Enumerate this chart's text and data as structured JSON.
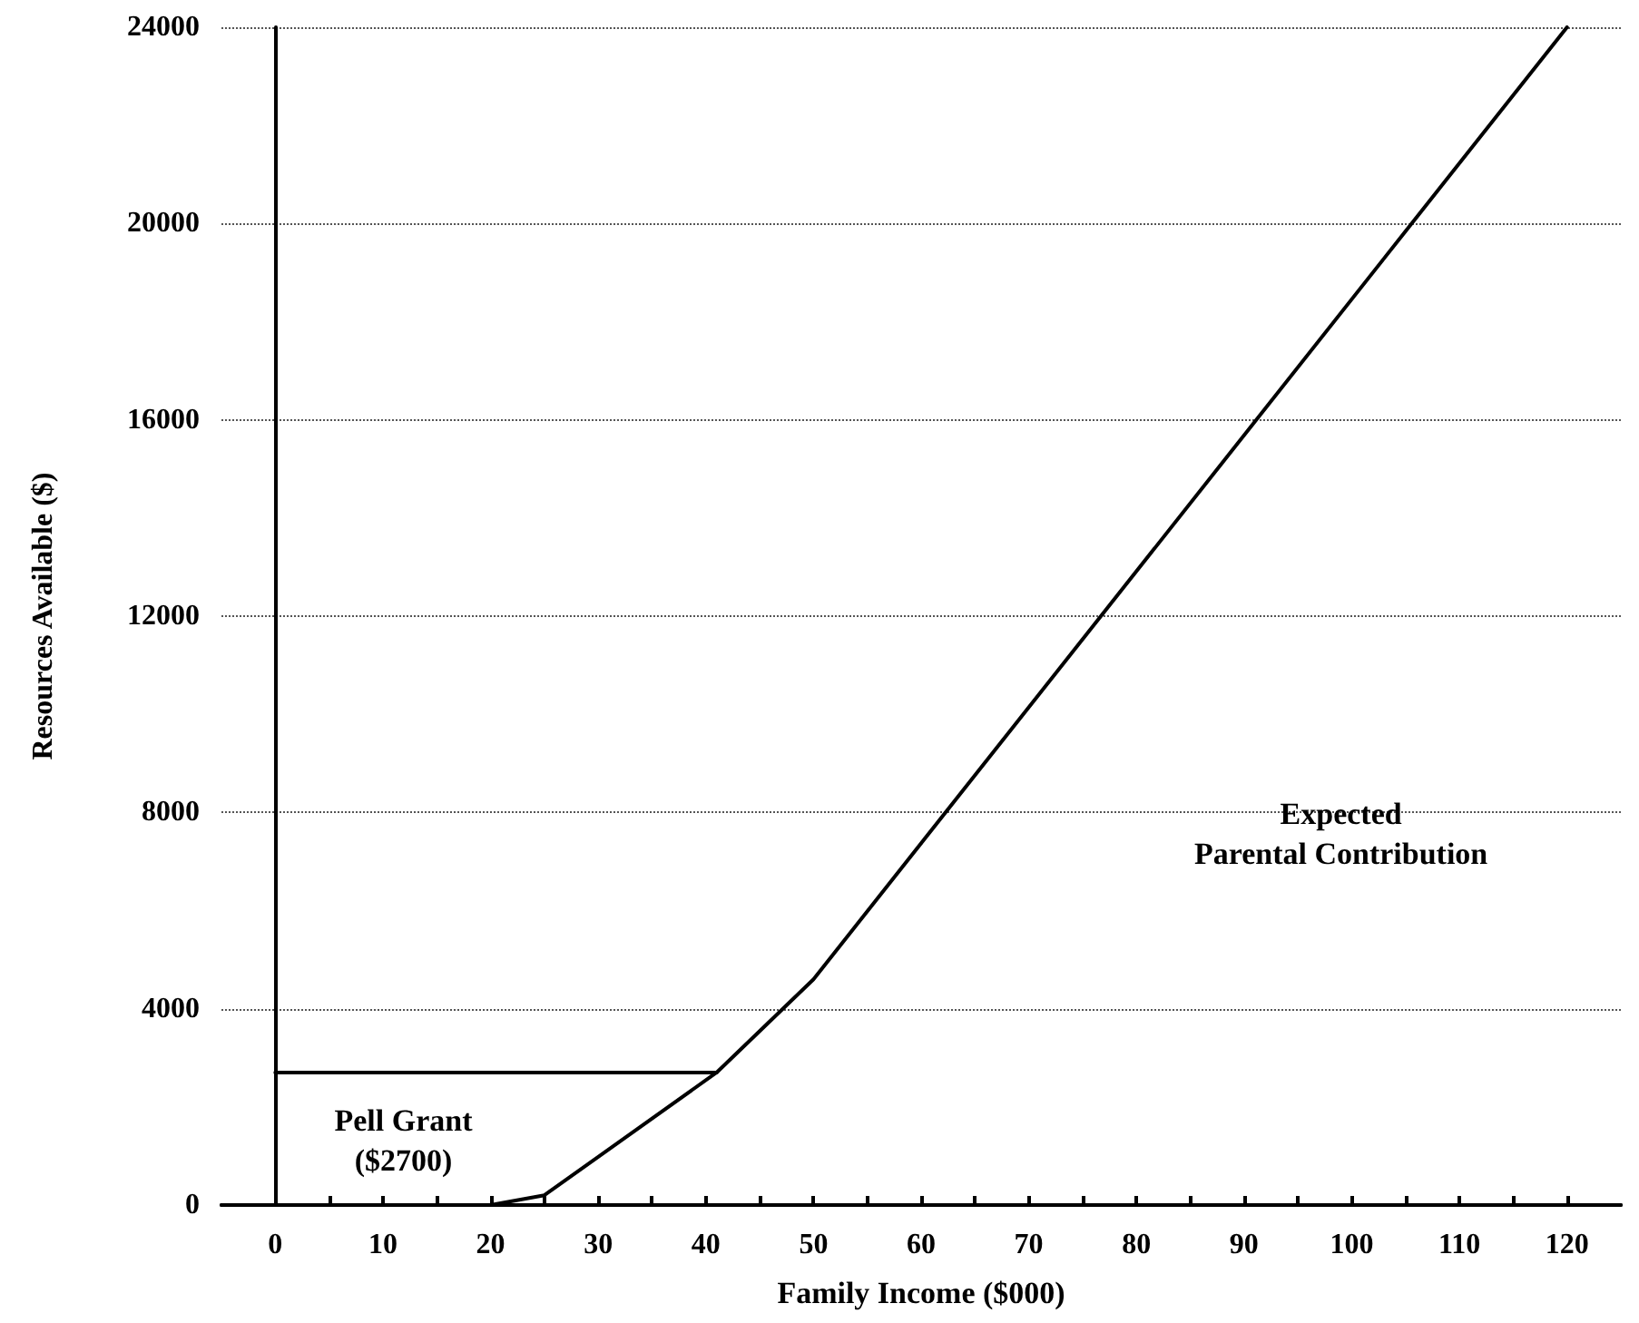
{
  "chart_data": {
    "type": "line",
    "xlabel": "Family Income ($000)",
    "ylabel": "Resources Available ($)",
    "series": [
      {
        "color": "#000000",
        "x": [
          0,
          41
        ],
        "values": [
          2700,
          2700
        ]
      },
      {
        "color": "#000000",
        "x": [
          0,
          20,
          25,
          41,
          50,
          120
        ],
        "values": [
          0,
          0,
          200,
          2700,
          4600,
          24000
        ]
      }
    ],
    "xlim": [
      -5,
      125
    ],
    "xticks": [
      0,
      {
        "value": 5,
        "label": null
      },
      10,
      {
        "value": 15,
        "label": null
      },
      20,
      {
        "value": 25,
        "label": null
      },
      30,
      {
        "value": 35,
        "label": null
      },
      40,
      {
        "value": 45,
        "label": null
      },
      50,
      {
        "value": 55,
        "label": null
      },
      60,
      {
        "value": 65,
        "label": null
      },
      70,
      {
        "value": 75,
        "label": null
      },
      80,
      {
        "value": 85,
        "label": null
      },
      90,
      {
        "value": 95,
        "label": null
      },
      100,
      {
        "value": 105,
        "label": null
      },
      110,
      {
        "value": 115,
        "label": null
      },
      120
    ],
    "ylim": [
      0,
      24000
    ],
    "yticks": [
      0,
      4000,
      8000,
      12000,
      16000,
      20000,
      24000
    ],
    "grid": "y",
    "marker": "none",
    "line_style": "solid",
    "annotations": [
      "Pell Grant\n($2700)",
      "Expected\nParental Contribution"
    ]
  }
}
